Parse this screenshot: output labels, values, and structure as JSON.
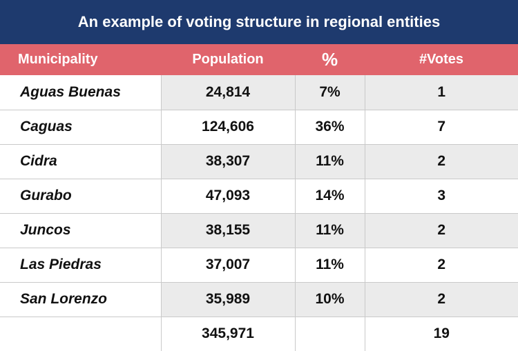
{
  "title": "An example of voting structure in regional entities",
  "headers": {
    "municipality": "Municipality",
    "population": "Population",
    "percent": "%",
    "votes": "#Votes"
  },
  "rows": [
    {
      "municipality": "Aguas Buenas",
      "population": "24,814",
      "percent": "7%",
      "votes": "1"
    },
    {
      "municipality": "Caguas",
      "population": "124,606",
      "percent": "36%",
      "votes": "7"
    },
    {
      "municipality": "Cidra",
      "population": "38,307",
      "percent": "11%",
      "votes": "2"
    },
    {
      "municipality": "Gurabo",
      "population": "47,093",
      "percent": "14%",
      "votes": "3"
    },
    {
      "municipality": "Juncos",
      "population": "38,155",
      "percent": "11%",
      "votes": "2"
    },
    {
      "municipality": "Las Piedras",
      "population": "37,007",
      "percent": "11%",
      "votes": "2"
    },
    {
      "municipality": "San Lorenzo",
      "population": "35,989",
      "percent": "10%",
      "votes": "2"
    }
  ],
  "totals": {
    "municipality": "",
    "population": "345,971",
    "percent": "",
    "votes": "19"
  },
  "colors": {
    "title_bg": "#1e3a6e",
    "header_bg": "#e0646c",
    "shade": "#ebebeb"
  }
}
